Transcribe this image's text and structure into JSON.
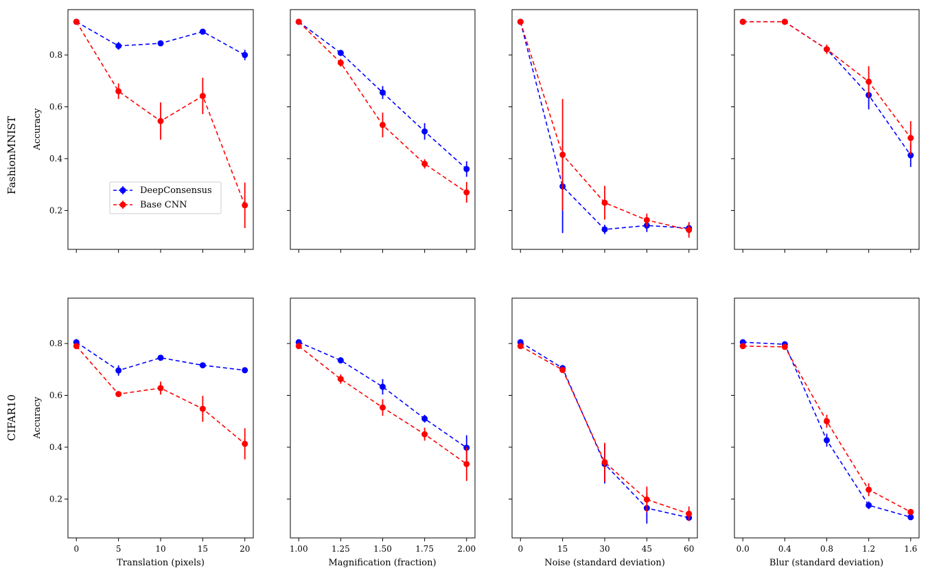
{
  "rows": [
    {
      "label": "FashionMNIST",
      "ylabel": "Accuracy"
    },
    {
      "label": "CIFAR10",
      "ylabel": "Accuracy"
    }
  ],
  "y_axis": {
    "ylim": [
      0.05,
      0.975
    ],
    "ticks": [
      0.2,
      0.4,
      0.6,
      0.8
    ],
    "tick_labels": [
      "0.2",
      "0.4",
      "0.6",
      "0.8"
    ]
  },
  "legend": {
    "placement": "lower-center",
    "entries": [
      "DeepConsensus",
      "Base CNN"
    ]
  },
  "colors": {
    "DeepConsensus": "#0000ff",
    "Base CNN": "#ff0000"
  },
  "columns": [
    {
      "xlabel": "Translation (pixels)",
      "xticks": [
        0,
        5,
        10,
        15,
        20
      ],
      "xtick_labels": [
        "0",
        "5",
        "10",
        "15",
        "20"
      ],
      "xlim": [
        -1,
        21
      ]
    },
    {
      "xlabel": "Magnification (fraction)",
      "xticks": [
        1.0,
        1.25,
        1.5,
        1.75,
        2.0
      ],
      "xtick_labels": [
        "1.00",
        "1.25",
        "1.50",
        "1.75",
        "2.00"
      ],
      "xlim": [
        0.95,
        2.05
      ]
    },
    {
      "xlabel": "Noise (standard deviation)",
      "xticks": [
        0,
        15,
        30,
        45,
        60
      ],
      "xtick_labels": [
        "0",
        "15",
        "30",
        "45",
        "60"
      ],
      "xlim": [
        -3,
        63
      ]
    },
    {
      "xlabel": "Blur (standard deviation)",
      "xticks": [
        0.0,
        0.4,
        0.8,
        1.2,
        1.6
      ],
      "xtick_labels": [
        "0.0",
        "0.4",
        "0.8",
        "1.2",
        "1.6"
      ],
      "xlim": [
        -0.08,
        1.68
      ]
    }
  ],
  "chart_data": [
    {
      "type": "line",
      "row": 0,
      "col": 0,
      "x": [
        0,
        5,
        10,
        15,
        20
      ],
      "series": [
        {
          "name": "DeepConsensus",
          "values": [
            0.928,
            0.835,
            0.845,
            0.89,
            0.8
          ],
          "err": [
            0.005,
            0.015,
            0.008,
            0.008,
            0.02
          ]
        },
        {
          "name": "Base CNN",
          "values": [
            0.928,
            0.66,
            0.545,
            0.642,
            0.22
          ],
          "err": [
            0.005,
            0.03,
            0.072,
            0.07,
            0.088
          ]
        }
      ]
    },
    {
      "type": "line",
      "row": 0,
      "col": 1,
      "x": [
        1.0,
        1.25,
        1.5,
        1.75,
        2.0
      ],
      "series": [
        {
          "name": "DeepConsensus",
          "values": [
            0.928,
            0.808,
            0.655,
            0.505,
            0.36
          ],
          "err": [
            0.005,
            0.012,
            0.025,
            0.032,
            0.03
          ]
        },
        {
          "name": "Base CNN",
          "values": [
            0.928,
            0.77,
            0.53,
            0.38,
            0.27
          ],
          "err": [
            0.005,
            0.015,
            0.048,
            0.018,
            0.04
          ]
        }
      ]
    },
    {
      "type": "line",
      "row": 0,
      "col": 2,
      "x": [
        0,
        15,
        30,
        45,
        60
      ],
      "series": [
        {
          "name": "DeepConsensus",
          "values": [
            0.928,
            0.293,
            0.127,
            0.142,
            0.132
          ],
          "err": [
            0.005,
            0.18,
            0.018,
            0.025,
            0.02
          ]
        },
        {
          "name": "Base CNN",
          "values": [
            0.928,
            0.415,
            0.23,
            0.163,
            0.125
          ],
          "err": [
            0.005,
            0.215,
            0.065,
            0.025,
            0.03
          ]
        }
      ]
    },
    {
      "type": "line",
      "row": 0,
      "col": 3,
      "x": [
        0.0,
        0.4,
        0.8,
        1.2,
        1.6
      ],
      "series": [
        {
          "name": "DeepConsensus",
          "values": [
            0.928,
            0.928,
            0.822,
            0.645,
            0.413
          ],
          "err": [
            0.005,
            0.005,
            0.012,
            0.055,
            0.045
          ]
        },
        {
          "name": "Base CNN",
          "values": [
            0.928,
            0.928,
            0.822,
            0.697,
            0.48
          ],
          "err": [
            0.005,
            0.005,
            0.018,
            0.06,
            0.065
          ]
        }
      ]
    },
    {
      "type": "line",
      "row": 1,
      "col": 0,
      "x": [
        0,
        5,
        10,
        15,
        20
      ],
      "series": [
        {
          "name": "DeepConsensus",
          "values": [
            0.805,
            0.696,
            0.745,
            0.716,
            0.697
          ],
          "err": [
            0.005,
            0.02,
            0.008,
            0.01,
            0.008
          ]
        },
        {
          "name": "Base CNN",
          "values": [
            0.79,
            0.605,
            0.628,
            0.548,
            0.413
          ],
          "err": [
            0.005,
            0.01,
            0.025,
            0.05,
            0.06
          ]
        }
      ]
    },
    {
      "type": "line",
      "row": 1,
      "col": 1,
      "x": [
        1.0,
        1.25,
        1.5,
        1.75,
        2.0
      ],
      "series": [
        {
          "name": "DeepConsensus",
          "values": [
            0.805,
            0.735,
            0.633,
            0.51,
            0.398
          ],
          "err": [
            0.005,
            0.012,
            0.03,
            0.015,
            0.048
          ]
        },
        {
          "name": "Base CNN",
          "values": [
            0.79,
            0.663,
            0.553,
            0.45,
            0.335
          ],
          "err": [
            0.005,
            0.018,
            0.032,
            0.025,
            0.065
          ]
        }
      ]
    },
    {
      "type": "line",
      "row": 1,
      "col": 2,
      "x": [
        0,
        15,
        30,
        45,
        60
      ],
      "series": [
        {
          "name": "DeepConsensus",
          "values": [
            0.805,
            0.705,
            0.335,
            0.165,
            0.128
          ],
          "err": [
            0.005,
            0.012,
            0.075,
            0.06,
            0.01
          ]
        },
        {
          "name": "Base CNN",
          "values": [
            0.79,
            0.698,
            0.342,
            0.198,
            0.143
          ],
          "err": [
            0.005,
            0.008,
            0.075,
            0.05,
            0.028
          ]
        }
      ]
    },
    {
      "type": "line",
      "row": 1,
      "col": 3,
      "x": [
        0.0,
        0.4,
        0.8,
        1.2,
        1.6
      ],
      "series": [
        {
          "name": "DeepConsensus",
          "values": [
            0.805,
            0.797,
            0.427,
            0.176,
            0.13
          ],
          "err": [
            0.005,
            0.005,
            0.025,
            0.015,
            0.008
          ]
        },
        {
          "name": "Base CNN",
          "values": [
            0.79,
            0.787,
            0.5,
            0.236,
            0.15
          ],
          "err": [
            0.005,
            0.005,
            0.025,
            0.025,
            0.008
          ]
        }
      ]
    }
  ]
}
